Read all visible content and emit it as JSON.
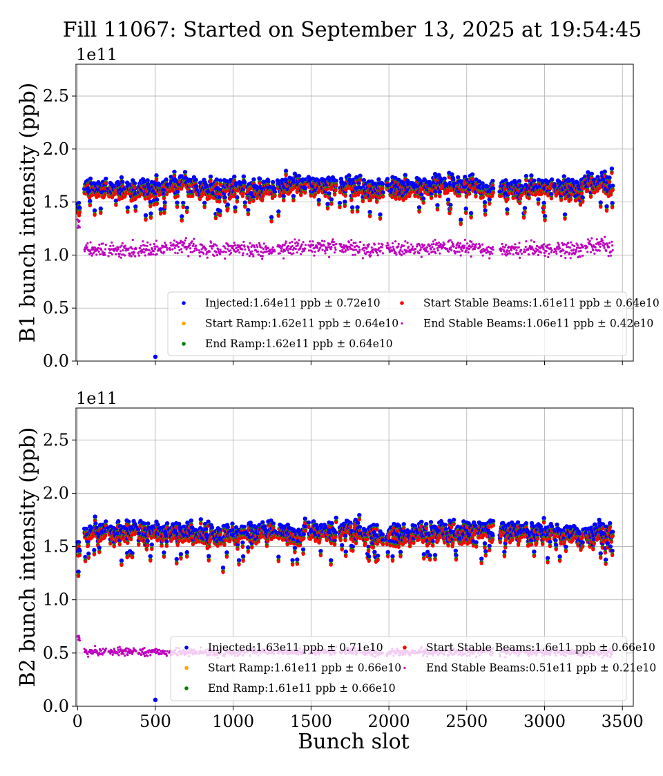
{
  "chart_data": {
    "title": "Fill 11067: Started on September 13, 2025 at 19:54:45",
    "xlabel": "Bunch slot",
    "xlim": [
      -10,
      3570
    ],
    "xticks": [
      0,
      500,
      1000,
      1500,
      2000,
      2500,
      3000,
      3500
    ],
    "grid": true,
    "colors": {
      "Injected": "#0000ff",
      "Start Ramp": "#ffa500",
      "End Ramp": "#008000",
      "Start Stable Beams": "#ff0000",
      "End Stable Beams": "#bf00bf"
    },
    "trains_bunch_slots": [
      [
        0,
        15
      ],
      [
        44,
        182
      ],
      [
        199,
        377
      ],
      [
        390,
        576
      ],
      [
        589,
        766
      ],
      [
        780,
        922
      ],
      [
        935,
        1077
      ],
      [
        1090,
        1267
      ],
      [
        1285,
        1467
      ],
      [
        1484,
        1662
      ],
      [
        1684,
        1817
      ],
      [
        1830,
        1963
      ],
      [
        1985,
        2171
      ],
      [
        2180,
        2366
      ],
      [
        2375,
        2561
      ],
      [
        2574,
        2672
      ],
      [
        2712,
        2853
      ],
      [
        2867,
        3048
      ],
      [
        3062,
        3248
      ],
      [
        3261,
        3438
      ]
    ],
    "subplots": [
      {
        "type": "scatter",
        "ylabel": "B1 bunch intensity (ppb)",
        "offset_label": "1e11",
        "ylim": [
          0,
          2.8
        ],
        "yticks": [
          "0.0",
          "0.5",
          "1.0",
          "1.5",
          "2.0",
          "2.5"
        ],
        "show_xticklabels": false,
        "legend_placement": "lower-right",
        "series": [
          {
            "name": "Injected",
            "legend": "Injected:1.64e11 ppb ± 0.72e10",
            "mean": 1.64,
            "std": 0.072
          },
          {
            "name": "Start Ramp",
            "legend": "Start Ramp:1.62e11 ppb ± 0.64e10",
            "mean": 1.62,
            "std": 0.064
          },
          {
            "name": "End Ramp",
            "legend": "End Ramp:1.62e11 ppb ± 0.64e10",
            "mean": 1.62,
            "std": 0.064
          },
          {
            "name": "Start Stable Beams",
            "legend": "Start Stable Beams:1.61e11 ppb ± 0.64e10",
            "mean": 1.61,
            "std": 0.064
          },
          {
            "name": "End Stable Beams",
            "legend": "End Stable Beams:1.06e11 ppb ± 0.42e10",
            "mean": 1.06,
            "std": 0.042
          }
        ],
        "outliers": [
          {
            "series": "Injected",
            "x": 500,
            "y": 0.04
          }
        ]
      },
      {
        "type": "scatter",
        "ylabel": "B2 bunch intensity (ppb)",
        "offset_label": "1e11",
        "ylim": [
          0,
          2.8
        ],
        "yticks": [
          "0.0",
          "0.5",
          "1.0",
          "1.5",
          "2.0",
          "2.5"
        ],
        "show_xticklabels": true,
        "legend_placement": "lower-right",
        "series": [
          {
            "name": "Injected",
            "legend": "Injected:1.63e11 ppb ± 0.71e10",
            "mean": 1.63,
            "std": 0.071
          },
          {
            "name": "Start Ramp",
            "legend": "Start Ramp:1.61e11 ppb ± 0.66e10",
            "mean": 1.61,
            "std": 0.066
          },
          {
            "name": "End Ramp",
            "legend": "End Ramp:1.61e11 ppb ± 0.66e10",
            "mean": 1.61,
            "std": 0.066
          },
          {
            "name": "Start Stable Beams",
            "legend": "Start Stable Beams:1.6e11 ppb ± 0.66e10",
            "mean": 1.6,
            "std": 0.066
          },
          {
            "name": "End Stable Beams",
            "legend": "End Stable Beams:0.51e11 ppb ± 0.21e10",
            "mean": 0.51,
            "std": 0.021
          }
        ],
        "outliers": [
          {
            "series": "Injected",
            "x": 500,
            "y": 0.06
          }
        ]
      }
    ]
  }
}
